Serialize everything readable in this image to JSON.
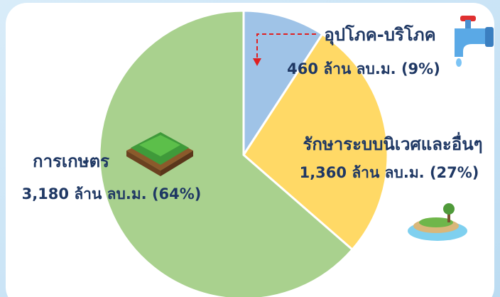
{
  "chart_data": {
    "type": "pie",
    "categories": [
      "อุปโภค-บริโภค",
      "รักษาระบบนิเวศและอื่นๆ",
      "การเกษตร"
    ],
    "values": [
      460,
      1360,
      3180
    ],
    "value_labels": [
      "460 ล้าน ลบ.ม. (9%)",
      "1,360 ล้าน ลบ.ม. (27%)",
      "3,180 ล้าน ลบ.ม. (64%)"
    ],
    "colors": [
      "#9fc3e7",
      "#ffd966",
      "#a9d18e"
    ]
  }
}
